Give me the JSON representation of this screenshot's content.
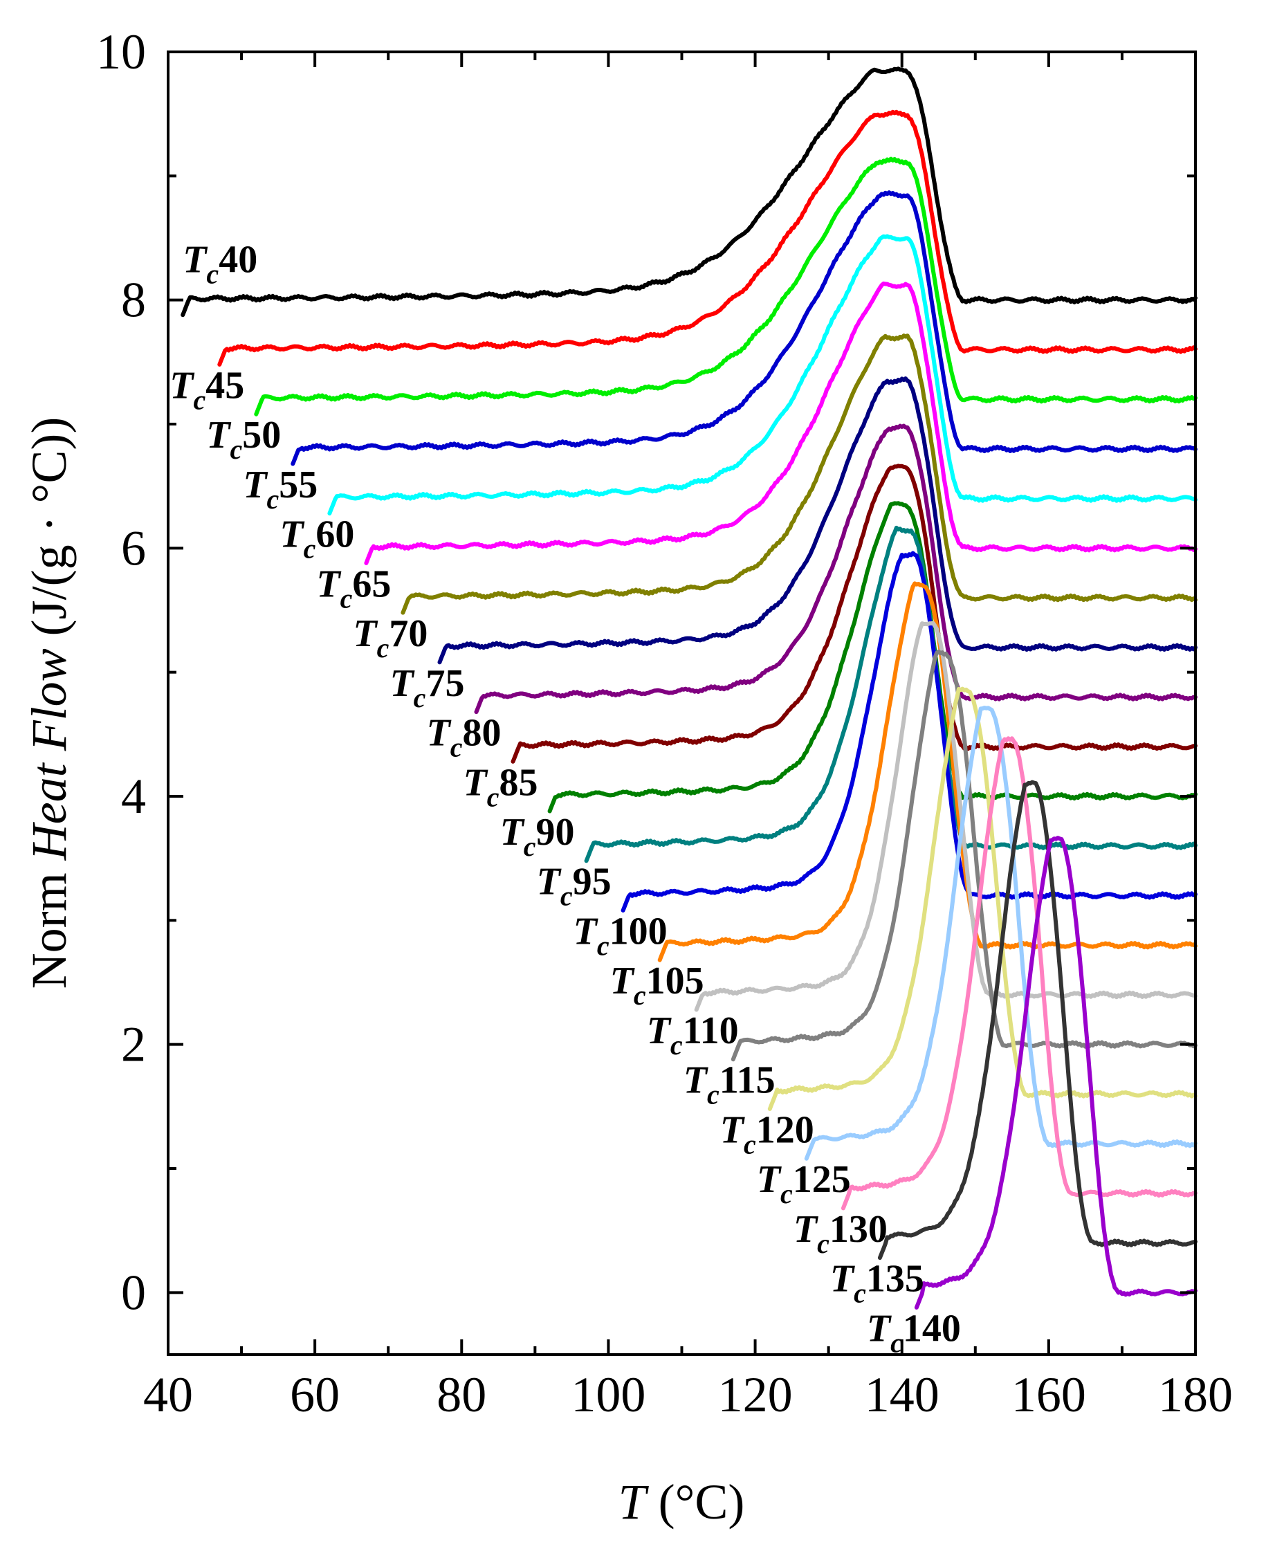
{
  "chart_data": {
    "type": "line",
    "xlabel": {
      "var": "T",
      "unit": " (°C)"
    },
    "ylabel": {
      "pre": "Norm ",
      "var": "Heat Flow",
      "unit": " (J/(g · °C))"
    },
    "xlim": [
      40,
      180
    ],
    "ylim": [
      -0.5,
      10
    ],
    "xticks": [
      40,
      60,
      80,
      100,
      120,
      140,
      160,
      180
    ],
    "yticks": [
      0,
      2,
      4,
      6,
      8,
      10
    ],
    "grid": false,
    "legend": "inline labels",
    "label_prefix": "T",
    "label_sub": "c",
    "series": [
      {
        "label": "40",
        "tc": 40,
        "offset": 8.0,
        "peak_x": 140.5,
        "peak_y": 9.85,
        "color": "#000000"
      },
      {
        "label": "45",
        "tc": 45,
        "offset": 7.6,
        "peak_x": 140.5,
        "peak_y": 9.5,
        "color": "#ff0000"
      },
      {
        "label": "50",
        "tc": 50,
        "offset": 7.2,
        "peak_x": 140.5,
        "peak_y": 9.12,
        "color": "#00ee00"
      },
      {
        "label": "55",
        "tc": 55,
        "offset": 6.8,
        "peak_x": 140.5,
        "peak_y": 8.85,
        "color": "#0000cc"
      },
      {
        "label": "60",
        "tc": 60,
        "offset": 6.4,
        "peak_x": 140.5,
        "peak_y": 8.5,
        "color": "#00ffff"
      },
      {
        "label": "65",
        "tc": 65,
        "offset": 6.0,
        "peak_x": 140.5,
        "peak_y": 8.12,
        "color": "#ff00ff"
      },
      {
        "label": "70",
        "tc": 70,
        "offset": 5.6,
        "peak_x": 140.5,
        "peak_y": 7.7,
        "color": "#808000"
      },
      {
        "label": "75",
        "tc": 75,
        "offset": 5.2,
        "peak_x": 140.5,
        "peak_y": 7.35,
        "color": "#000080"
      },
      {
        "label": "80",
        "tc": 80,
        "offset": 4.8,
        "peak_x": 140.5,
        "peak_y": 6.97,
        "color": "#800080"
      },
      {
        "label": "85",
        "tc": 85,
        "offset": 4.4,
        "peak_x": 140.5,
        "peak_y": 6.65,
        "color": "#800000"
      },
      {
        "label": "90",
        "tc": 90,
        "offset": 4.0,
        "peak_x": 140.5,
        "peak_y": 6.35,
        "color": "#008000"
      },
      {
        "label": "95",
        "tc": 95,
        "offset": 3.6,
        "peak_x": 141.0,
        "peak_y": 6.15,
        "color": "#008080"
      },
      {
        "label": "100",
        "tc": 100,
        "offset": 3.2,
        "peak_x": 141.5,
        "peak_y": 5.95,
        "color": "#0000dd"
      },
      {
        "label": "105",
        "tc": 105,
        "offset": 2.8,
        "peak_x": 143.0,
        "peak_y": 5.7,
        "color": "#ff8000"
      },
      {
        "label": "110",
        "tc": 110,
        "offset": 2.4,
        "peak_x": 144.0,
        "peak_y": 5.4,
        "color": "#c0c0c0"
      },
      {
        "label": "115",
        "tc": 115,
        "offset": 2.0,
        "peak_x": 146.0,
        "peak_y": 5.15,
        "color": "#808080"
      },
      {
        "label": "120",
        "tc": 120,
        "offset": 1.6,
        "peak_x": 149.0,
        "peak_y": 4.85,
        "color": "#e0e080"
      },
      {
        "label": "125",
        "tc": 125,
        "offset": 1.2,
        "peak_x": 152.0,
        "peak_y": 4.7,
        "color": "#99ccff"
      },
      {
        "label": "130",
        "tc": 130,
        "offset": 0.8,
        "peak_x": 155.0,
        "peak_y": 4.45,
        "color": "#ff80c0"
      },
      {
        "label": "135",
        "tc": 135,
        "offset": 0.4,
        "peak_x": 158.0,
        "peak_y": 4.1,
        "color": "#333333"
      },
      {
        "label": "140",
        "tc": 140,
        "offset": 0.0,
        "peak_x": 161.5,
        "peak_y": 3.65,
        "color": "#9900cc"
      }
    ]
  }
}
